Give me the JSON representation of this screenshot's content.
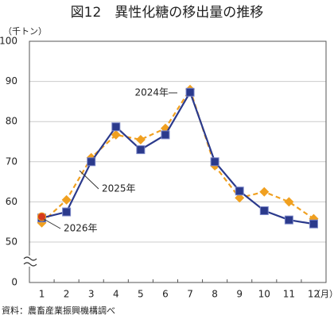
{
  "chart_data": {
    "type": "line",
    "title": "図12　異性化糖の移出量の推移",
    "y_unit": "（千トン）",
    "x_unit": "（月）",
    "source": "資料：農畜産業振興機構調べ",
    "categories": [
      "1",
      "2",
      "3",
      "4",
      "5",
      "6",
      "7",
      "8",
      "9",
      "10",
      "11",
      "12"
    ],
    "ylim": [
      0,
      100
    ],
    "yticks": [
      0,
      50,
      60,
      70,
      80,
      90,
      100
    ],
    "axis_break": [
      0,
      50
    ],
    "grid": true,
    "series": [
      {
        "name": "2025年",
        "color": "#f0a020",
        "dashed": true,
        "marker": "diamond",
        "values": [
          54.8,
          60.5,
          71,
          76.7,
          75.5,
          78.3,
          88,
          69,
          61,
          62.5,
          60,
          55.8
        ]
      },
      {
        "name": "2024年",
        "color": "#2b3a8c",
        "dashed": false,
        "marker": "square",
        "values": [
          56,
          57.5,
          70,
          78.7,
          73,
          76.7,
          87.3,
          70,
          62.7,
          57.8,
          55.5,
          54.5
        ]
      },
      {
        "name": "2026年",
        "color": "#d63a1e",
        "dashed": false,
        "marker": "circle",
        "values": [
          56.3,
          null,
          null,
          null,
          null,
          null,
          null,
          null,
          null,
          null,
          null,
          null
        ]
      }
    ]
  }
}
